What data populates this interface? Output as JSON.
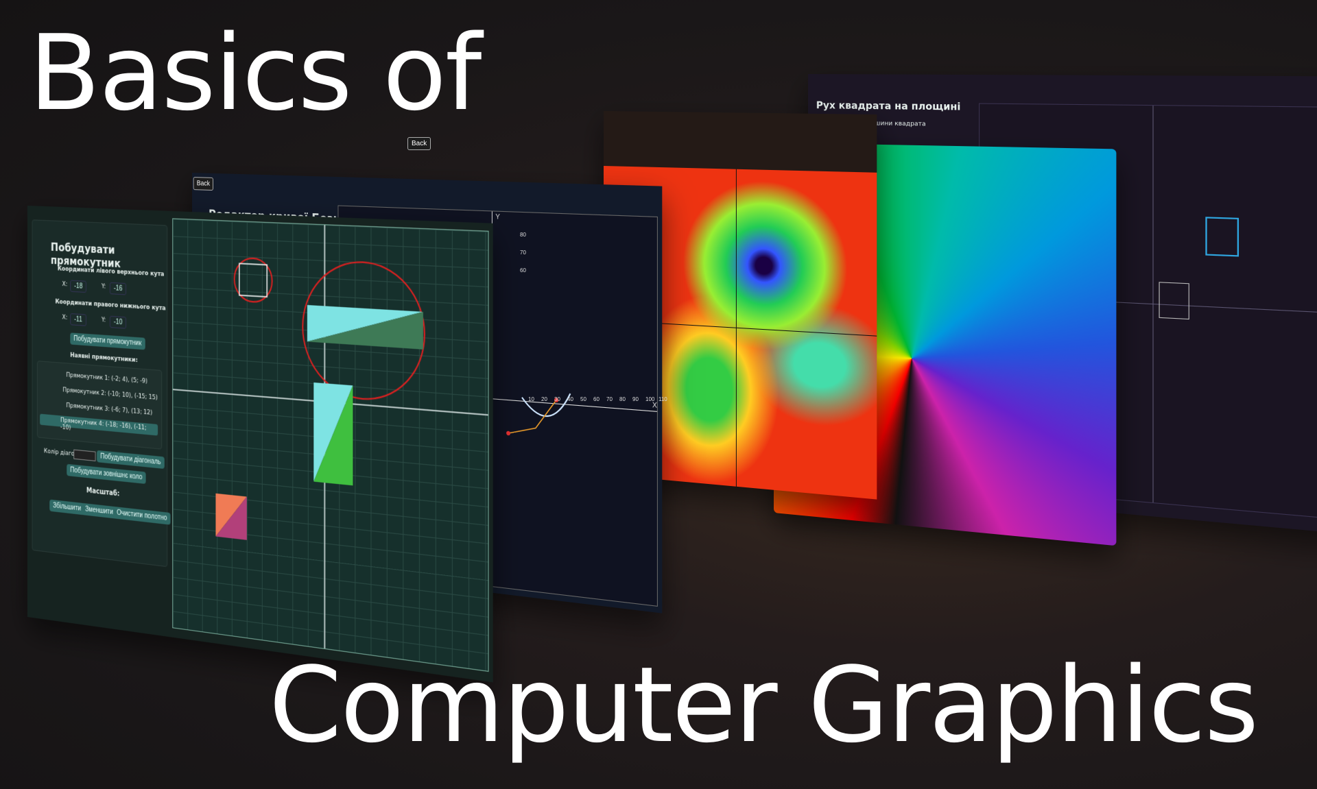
{
  "title": {
    "line1": "Basics of",
    "line2": "Computer Graphics"
  },
  "rectangle_panel": {
    "heading": "Побудувати прямокутник",
    "top_left_label": "Координати лівого верхнього кута",
    "bottom_right_label": "Координати правого нижнього кута",
    "x_label": "X:",
    "y_label": "Y:",
    "top_left_x": "-18",
    "top_left_y": "-16",
    "bottom_right_x": "-11",
    "bottom_right_y": "-10",
    "build_button": "Побудувати прямокутник",
    "existing_heading": "Наявні прямокутники:",
    "rectangles": [
      "Прямокутник 1: (-2; 4), (5; -9)",
      "Прямокутник 2: (-10; 10), (-15; 15)",
      "Прямокутник 3: (-6; 7), (13; 12)",
      "Прямокутник 4: (-18; -16), (-11; -10)"
    ],
    "diag_color_label": "Колір діагоналі:",
    "build_diagonal_button": "Побудувати діагональ",
    "build_circle_button": "Побудувати зовнішнє коло",
    "scale_heading": "Масштаб:",
    "zoom_in_button": "Збільшити",
    "zoom_out_button": "Зменшити",
    "clear_button": "Очистити полотно"
  },
  "bezier_panel": {
    "back_label": "Back",
    "heading": "Редактор кривої Безьє"
  },
  "fractal_panel": {
    "back_label": "Back"
  },
  "square_panel": {
    "heading": "Рух квадрата на площині",
    "subheading": "Діагональні вершини квадрата"
  },
  "colors": {
    "grid_bg": "#16302c",
    "accent_teal": "#2f6a66",
    "circle_red": "#e02020",
    "diag_cyan": "#7ee3e3",
    "diag_green": "#3fbf3f"
  },
  "bezier_axis_x": [
    "10",
    "20",
    "30",
    "40",
    "50",
    "60",
    "70",
    "80",
    "90",
    "100",
    "110"
  ],
  "bezier_axis_y": [
    "80",
    "70",
    "60"
  ],
  "bezier_axis_labels": {
    "x": "X",
    "y": "Y"
  }
}
